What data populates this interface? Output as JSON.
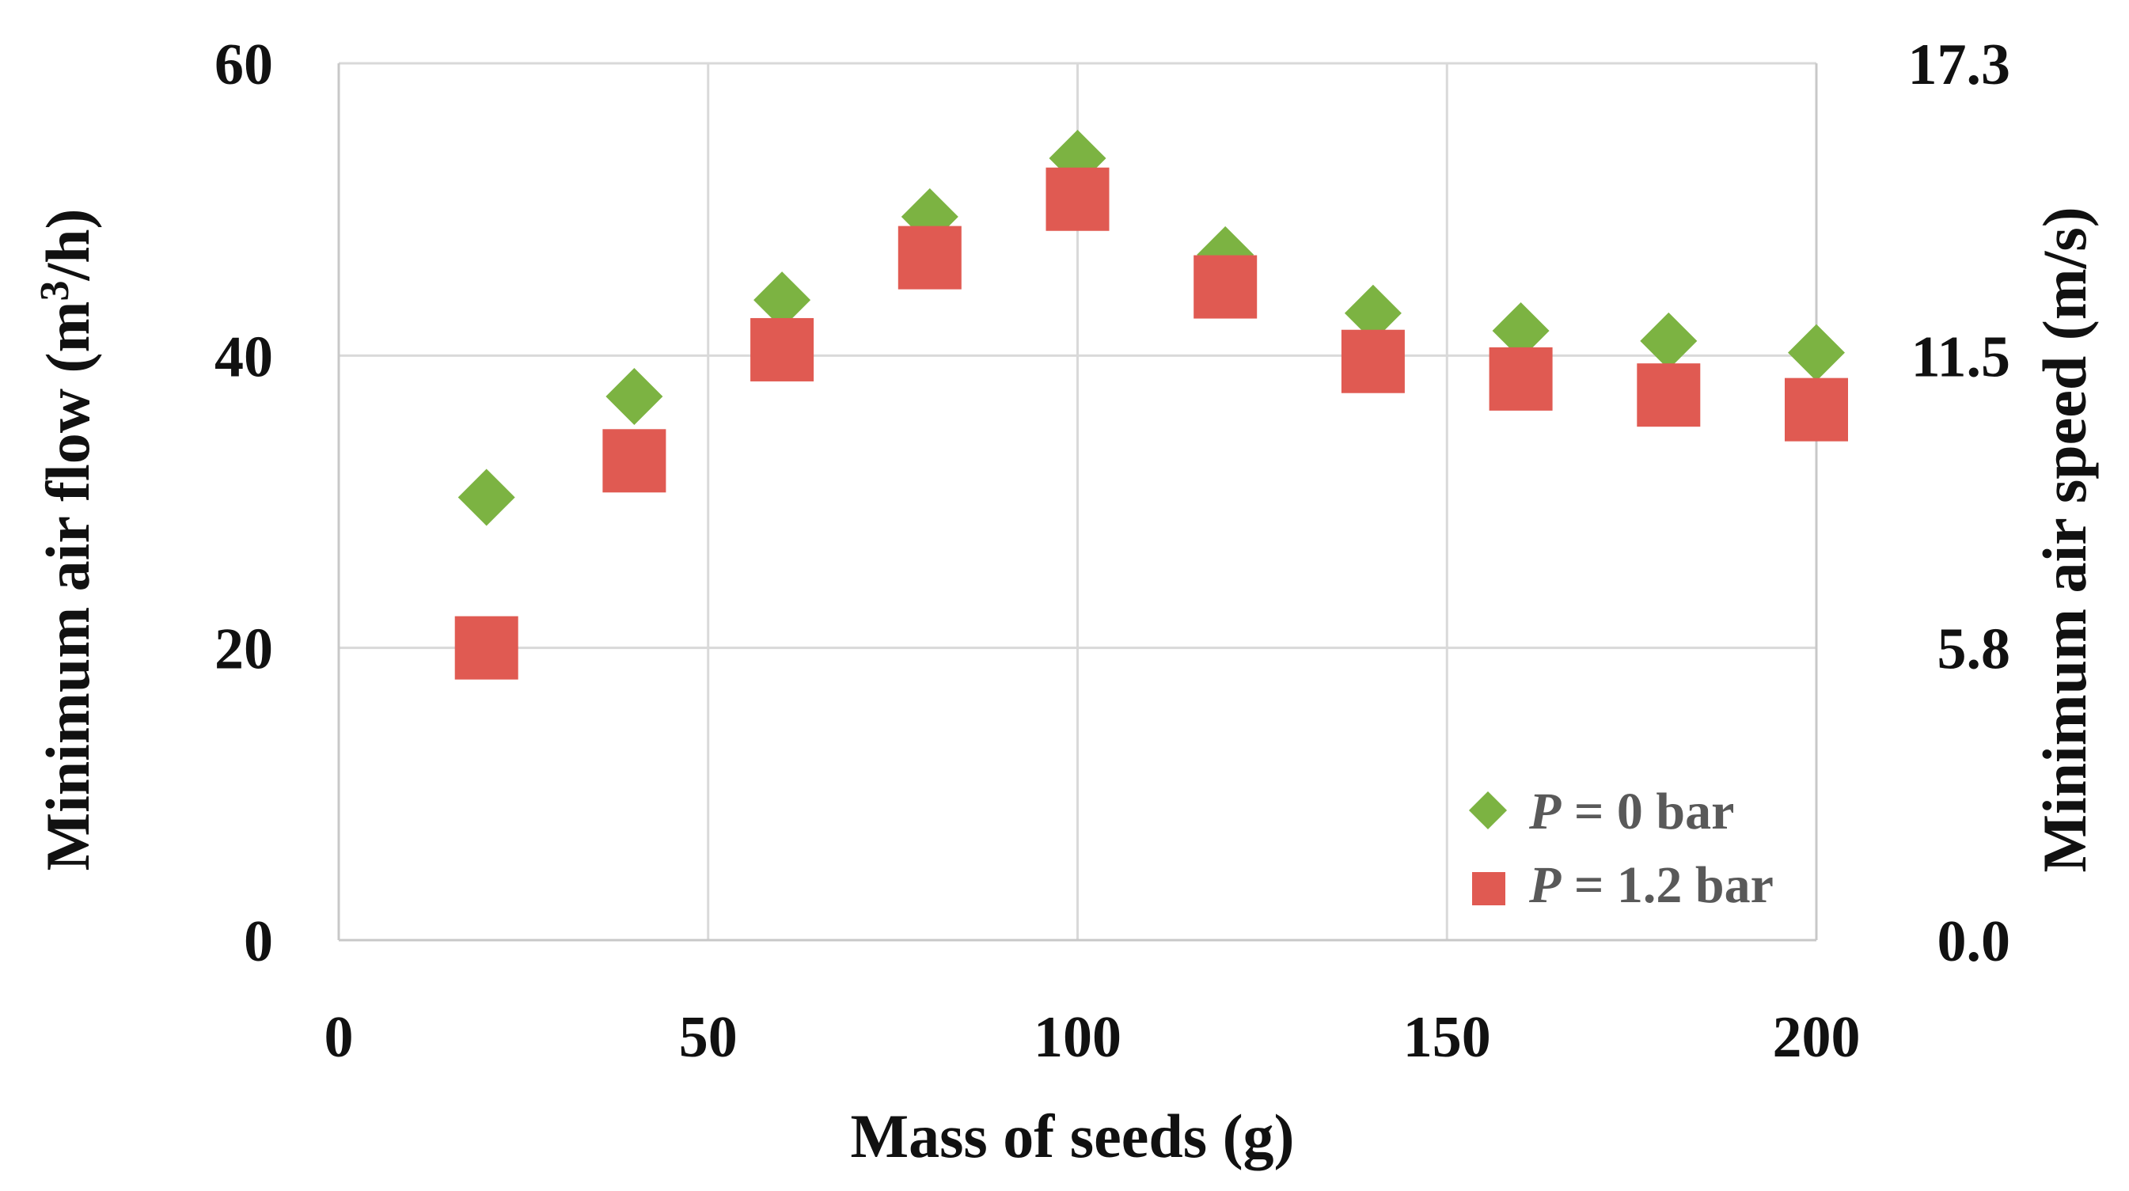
{
  "chart_data": {
    "type": "scatter",
    "xlabel": "Mass of seeds (g)",
    "ylabel_left": {
      "main": "Minimum air flow (m",
      "sup": "3",
      "tail": "/h)"
    },
    "ylabel_right": "Minimum air speed (m/s)",
    "xlim": [
      0,
      200
    ],
    "ylim": [
      0,
      60
    ],
    "x_ticks": [
      "0",
      "50",
      "100",
      "150",
      "200"
    ],
    "y_ticks_left": [
      "0",
      "20",
      "40",
      "60"
    ],
    "y_ticks_right": [
      "0.0",
      "5.8",
      "11.5",
      "17.3"
    ],
    "grid": true,
    "legend_placement": "bottom-right",
    "series": [
      {
        "name": "P = 0 bar",
        "legend_var": "P",
        "legend_rest": " = 0 bar",
        "marker": "diamond",
        "color": "#7cb342",
        "x": [
          20,
          40,
          60,
          80,
          100,
          120,
          140,
          160,
          180,
          200
        ],
        "y": [
          30.3,
          37.2,
          43.8,
          49.5,
          53.5,
          46.9,
          42.9,
          41.7,
          41.0,
          40.2
        ]
      },
      {
        "name": "P = 1.2 bar",
        "legend_var": "P",
        "legend_rest": " = 1.2 bar",
        "marker": "square",
        "color": "#e05a52",
        "x": [
          20,
          40,
          60,
          80,
          100,
          120,
          140,
          160,
          180,
          200
        ],
        "y": [
          20.0,
          32.8,
          40.4,
          46.7,
          50.7,
          44.7,
          39.6,
          38.4,
          37.3,
          36.3
        ]
      }
    ]
  }
}
